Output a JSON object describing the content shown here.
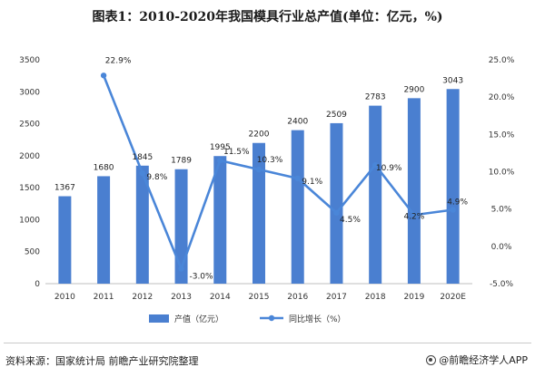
{
  "title": "图表1：2010-2020年我国模具行业总产值(单位：亿元，%)",
  "source": "资料来源：国家统计局 前瞻产业研究院整理",
  "brand": "@前瞻经济学人APP",
  "colors": {
    "bar": "#4a7fd0",
    "line": "#4a86d8",
    "axis": "#bfbfbf",
    "grid": "#e3e3e3"
  },
  "chart_data": {
    "type": "bar+line",
    "categories": [
      "2010",
      "2011",
      "2012",
      "2013",
      "2014",
      "2015",
      "2016",
      "2017",
      "2018",
      "2019",
      "2020E"
    ],
    "series": [
      {
        "name": "产值（亿元）",
        "type": "bar",
        "axis": "left",
        "values": [
          1367,
          1680,
          1845,
          1789,
          1995,
          2200,
          2400,
          2509,
          2783,
          2900,
          3043
        ],
        "labels": [
          "1367",
          "1680",
          "1845",
          "1789",
          "1995",
          "2200",
          "2400",
          "2509",
          "2783",
          "2900",
          "3043"
        ]
      },
      {
        "name": "同比增长（%）",
        "type": "line",
        "axis": "right",
        "values": [
          null,
          22.9,
          9.8,
          -3.0,
          11.5,
          10.3,
          9.1,
          4.5,
          10.9,
          4.2,
          4.9
        ],
        "labels": [
          "",
          "22.9%",
          "9.8%",
          "-3.0%",
          "11.5%",
          "10.3%",
          "9.1%",
          "4.5%",
          "10.9%",
          "4.2%",
          "4.9%"
        ]
      }
    ],
    "y_left": {
      "min": 0,
      "max": 3500,
      "ticks": [
        "0",
        "500",
        "1000",
        "1500",
        "2000",
        "2500",
        "3000",
        "3500"
      ]
    },
    "y_right": {
      "min": -5,
      "max": 25,
      "ticks": [
        "-5.0%",
        "0.0%",
        "5.0%",
        "10.0%",
        "15.0%",
        "20.0%",
        "25.0%"
      ]
    },
    "grid": false,
    "legend": "bottom-center"
  }
}
